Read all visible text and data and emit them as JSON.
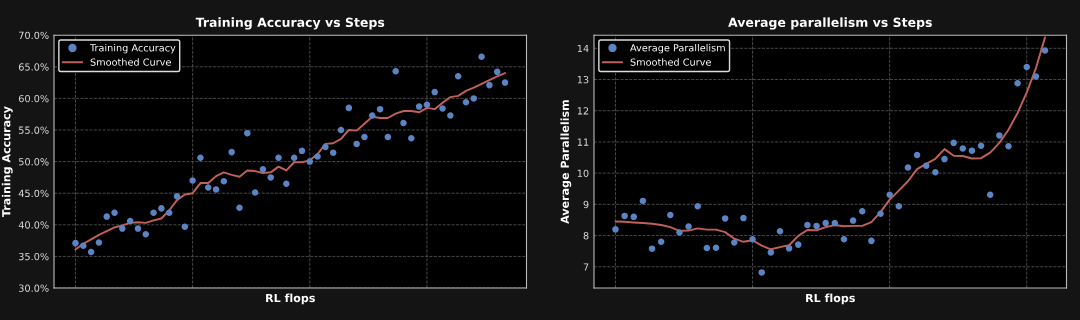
{
  "chart_data": [
    {
      "type": "scatter",
      "title": "Training Accuracy vs Steps",
      "xlabel": "RL flops",
      "ylabel": "Training Accuracy",
      "categories": [
        null,
        null,
        null,
        null,
        null,
        null,
        null,
        null,
        null,
        null,
        null,
        null,
        null,
        null,
        null,
        null,
        null,
        null,
        null,
        null,
        null,
        null,
        null,
        null,
        null,
        null,
        null,
        null,
        null,
        null,
        null,
        null,
        null,
        null,
        null,
        null,
        null,
        null,
        null,
        null,
        null,
        null,
        null,
        null,
        null,
        null,
        null,
        null,
        null,
        null,
        null,
        null,
        null,
        null,
        null,
        null
      ],
      "series": [
        {
          "name": "Training Accuracy",
          "type": "scatter",
          "color": "#5b84c4",
          "values": [
            37.1,
            36.7,
            35.7,
            37.2,
            41.3,
            41.9,
            39.4,
            40.6,
            39.4,
            38.5,
            41.9,
            42.6,
            41.9,
            44.5,
            39.7,
            47.0,
            50.6,
            45.9,
            45.6,
            46.9,
            51.5,
            42.7,
            54.5,
            45.1,
            48.8,
            47.5,
            50.6,
            46.5,
            50.6,
            51.7,
            50.0,
            50.8,
            52.3,
            51.4,
            55.0,
            58.5,
            52.8,
            53.9,
            57.3,
            58.3,
            53.9,
            64.3,
            56.1,
            53.7,
            58.7,
            59.0,
            61.0,
            58.4,
            57.3,
            63.5,
            59.4,
            60.0,
            66.6,
            62.1,
            64.2,
            62.5
          ]
        },
        {
          "name": "Smoothed Curve",
          "type": "line",
          "color": "#c0605a",
          "values": [
            36.1,
            37.0,
            37.7,
            38.4,
            39.0,
            39.6,
            39.9,
            40.3,
            40.4,
            40.3,
            40.7,
            41.0,
            42.3,
            43.9,
            44.8,
            45.0,
            46.6,
            46.6,
            47.7,
            48.3,
            47.9,
            47.6,
            48.6,
            48.5,
            48.2,
            48.3,
            49.2,
            48.6,
            49.9,
            49.9,
            50.2,
            51.2,
            52.8,
            52.9,
            53.6,
            55.0,
            54.9,
            56.0,
            57.1,
            56.9,
            56.9,
            57.6,
            58.0,
            58.0,
            57.8,
            58.5,
            58.3,
            59.3,
            60.2,
            60.4,
            61.2,
            61.7,
            62.3,
            62.9,
            63.5,
            64.0
          ]
        }
      ],
      "ylim": [
        30,
        70
      ],
      "yticks": [
        {
          "value": 30,
          "label": "30.0%"
        },
        {
          "value": 35,
          "label": "35.0%"
        },
        {
          "value": 40,
          "label": "40.0%"
        },
        {
          "value": 45,
          "label": "45.0%"
        },
        {
          "value": 50,
          "label": "50.0%"
        },
        {
          "value": 55,
          "label": "55.0%"
        },
        {
          "value": 60,
          "label": "60.0%"
        },
        {
          "value": 65,
          "label": "65.0%"
        },
        {
          "value": 70,
          "label": "70.0%"
        }
      ],
      "grid": true,
      "legend": "top left",
      "tick_labels": "y"
    },
    {
      "type": "scatter",
      "title": "Average parallelism vs Steps",
      "xlabel": "RL flops",
      "ylabel": "Average Parallelism",
      "categories": [
        null,
        null,
        null,
        null,
        null,
        null,
        null,
        null,
        null,
        null,
        null,
        null,
        null,
        null,
        null,
        null,
        null,
        null,
        null,
        null,
        null,
        null,
        null,
        null,
        null,
        null,
        null,
        null,
        null,
        null,
        null,
        null,
        null,
        null,
        null,
        null,
        null,
        null,
        null,
        null,
        null,
        null,
        null,
        null,
        null,
        null,
        null,
        null
      ],
      "series": [
        {
          "name": "Average Parallelism",
          "type": "scatter",
          "color": "#5b84c4",
          "values": [
            8.2,
            8.63,
            8.6,
            9.11,
            7.58,
            7.8,
            8.66,
            8.1,
            8.29,
            8.94,
            7.6,
            7.61,
            8.55,
            7.78,
            8.56,
            7.88,
            6.82,
            7.46,
            8.14,
            7.59,
            7.71,
            8.34,
            8.31,
            8.4,
            8.4,
            7.88,
            8.48,
            8.78,
            7.83,
            8.7,
            9.31,
            8.94,
            10.18,
            10.58,
            10.24,
            10.03,
            10.45,
            10.97,
            10.79,
            10.72,
            10.88,
            9.31,
            11.21,
            10.86,
            12.88,
            13.4,
            13.1,
            13.93
          ]
        },
        {
          "name": "Smoothed Curve",
          "type": "line",
          "color": "#c0605a",
          "values": [
            8.45,
            8.44,
            8.42,
            8.4,
            8.38,
            8.34,
            8.27,
            8.15,
            8.16,
            8.23,
            8.19,
            8.19,
            8.11,
            7.9,
            7.8,
            7.85,
            7.68,
            7.56,
            7.63,
            7.69,
            7.99,
            8.18,
            8.17,
            8.27,
            8.34,
            8.3,
            8.31,
            8.31,
            8.43,
            8.75,
            9.15,
            9.44,
            9.74,
            10.13,
            10.3,
            10.46,
            10.77,
            10.56,
            10.55,
            10.47,
            10.48,
            10.66,
            10.97,
            11.39,
            11.93,
            12.59,
            13.36,
            14.35
          ]
        }
      ],
      "ylim": [
        6.32,
        14.42
      ],
      "yticks": [
        7,
        8,
        9,
        10,
        11,
        12,
        13,
        14
      ],
      "grid": true,
      "legend": "top left",
      "tick_labels": "y"
    }
  ]
}
